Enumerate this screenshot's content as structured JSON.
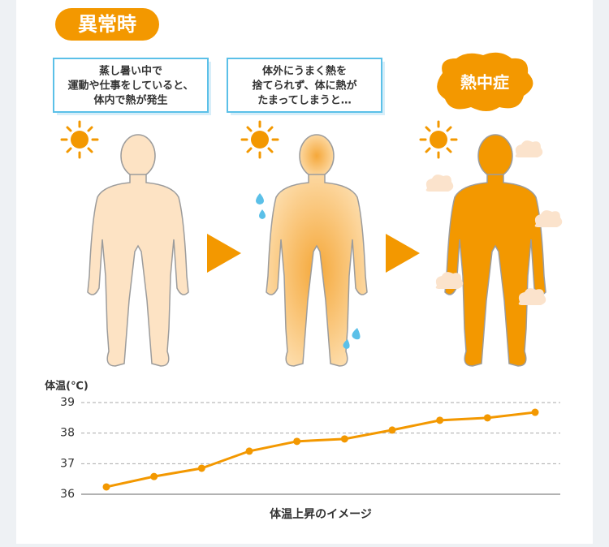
{
  "badge": "異常時",
  "stages": [
    {
      "lines": [
        "蒸し暑い中で",
        "運動や仕事をしていると、",
        "体内で熱が発生"
      ]
    },
    {
      "lines": [
        "体外にうまく熱を",
        "捨てられず、体に熱が",
        "たまってしまうと…"
      ]
    },
    {
      "label": "熱中症"
    }
  ],
  "chart_data": {
    "type": "line",
    "y_label": "体温(℃)",
    "x_label": "体温上昇のイメージ",
    "categories": [
      null,
      null,
      null,
      null,
      null,
      null,
      null,
      null,
      null,
      null
    ],
    "series": [
      {
        "color": "#f39800",
        "values": [
          36.24,
          36.58,
          36.85,
          37.41,
          37.73,
          37.81,
          38.1,
          38.42,
          38.5,
          38.68
        ]
      }
    ],
    "ylim": [
      36,
      39
    ],
    "yticks": [
      36,
      37,
      38,
      39
    ],
    "grid": true
  }
}
